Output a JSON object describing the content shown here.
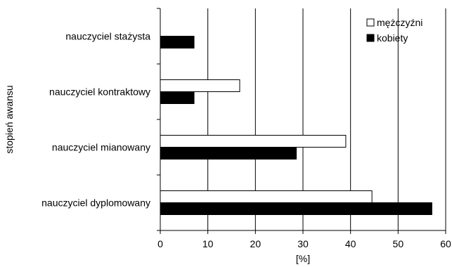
{
  "chart_data": {
    "type": "bar",
    "orientation": "horizontal",
    "categories": [
      "nauczyciel stażysta",
      "nauczyciel kontraktowy",
      "nauczyciel mianowany",
      "nauczyciel dyplomowany"
    ],
    "series": [
      {
        "name": "mężczyźni",
        "values": [
          0,
          16.7,
          39.0,
          44.5
        ],
        "color": "#ffffff"
      },
      {
        "name": "kobiety",
        "values": [
          7.1,
          7.1,
          28.6,
          57.1
        ],
        "color": "#000000"
      }
    ],
    "xlabel": "[%]",
    "ylabel": "stopień awansu",
    "xlim": [
      0,
      60
    ],
    "xticks": [
      "0",
      "10",
      "20",
      "30",
      "40",
      "50",
      "60"
    ],
    "grid": "vertical",
    "legend": "top-right"
  }
}
